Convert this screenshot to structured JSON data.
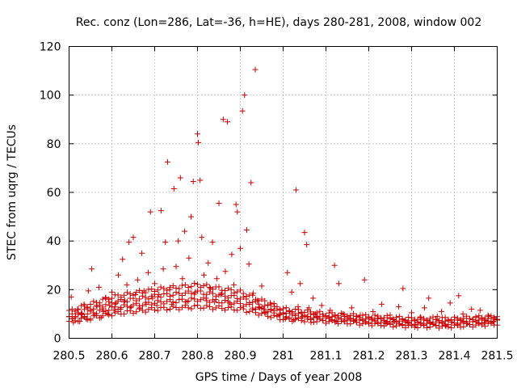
{
  "chart_data": {
    "type": "scatter",
    "title": "Rec. conz (Lon=286, Lat=-36, h=HE), days 280-281, 2008, window 002",
    "xlabel": "GPS time / Days of year 2008",
    "ylabel": "STEC from uqrg / TECUs",
    "xlim": [
      280.5,
      281.5
    ],
    "ylim": [
      0,
      120
    ],
    "xticks": [
      "280.5",
      "280.6",
      "280.7",
      "280.8",
      "280.9",
      "281",
      "281.1",
      "281.2",
      "281.3",
      "281.4",
      "281.5"
    ],
    "yticks": [
      "0",
      "20",
      "40",
      "60",
      "80",
      "100",
      "120"
    ],
    "grid": true,
    "marker": "plus",
    "color": "#cc0000",
    "series": [
      {
        "name": "STEC",
        "points": [
          [
            280.505,
            17.0
          ],
          [
            280.51,
            6.5
          ],
          [
            280.515,
            9.0
          ],
          [
            280.52,
            12.0
          ],
          [
            280.525,
            7.0
          ],
          [
            280.53,
            10.0
          ],
          [
            280.535,
            14.0
          ],
          [
            280.54,
            8.0
          ],
          [
            280.545,
            19.5
          ],
          [
            280.55,
            7.5
          ],
          [
            280.553,
            28.5
          ],
          [
            280.56,
            9.5
          ],
          [
            280.565,
            13.0
          ],
          [
            280.57,
            21.0
          ],
          [
            280.575,
            8.5
          ],
          [
            280.58,
            11.0
          ],
          [
            280.585,
            16.5
          ],
          [
            280.59,
            10.0
          ],
          [
            280.595,
            13.5
          ],
          [
            280.6,
            19.0
          ],
          [
            280.605,
            11.5
          ],
          [
            280.61,
            14.5
          ],
          [
            280.615,
            26.0
          ],
          [
            280.62,
            12.0
          ],
          [
            280.625,
            32.5
          ],
          [
            280.63,
            15.5
          ],
          [
            280.635,
            22.0
          ],
          [
            280.64,
            39.5
          ],
          [
            280.645,
            13.0
          ],
          [
            280.65,
            41.5
          ],
          [
            280.655,
            18.0
          ],
          [
            280.66,
            24.0
          ],
          [
            280.665,
            12.5
          ],
          [
            280.67,
            35.0
          ],
          [
            280.675,
            19.5
          ],
          [
            280.68,
            14.0
          ],
          [
            280.685,
            27.0
          ],
          [
            280.69,
            52.0
          ],
          [
            280.695,
            16.5
          ],
          [
            280.7,
            22.5
          ],
          [
            280.705,
            13.5
          ],
          [
            280.71,
            18.0
          ],
          [
            280.715,
            52.5
          ],
          [
            280.72,
            28.5
          ],
          [
            280.725,
            39.5
          ],
          [
            280.73,
            72.5
          ],
          [
            280.735,
            20.0
          ],
          [
            280.74,
            14.0
          ],
          [
            280.745,
            61.5
          ],
          [
            280.75,
            29.5
          ],
          [
            280.755,
            40.0
          ],
          [
            280.76,
            66.0
          ],
          [
            280.765,
            24.5
          ],
          [
            280.77,
            44.0
          ],
          [
            280.775,
            15.0
          ],
          [
            280.78,
            33.0
          ],
          [
            280.785,
            50.0
          ],
          [
            280.79,
            64.5
          ],
          [
            280.795,
            19.0
          ],
          [
            280.8,
            84.0
          ],
          [
            280.802,
            80.5
          ],
          [
            280.806,
            65.0
          ],
          [
            280.81,
            41.5
          ],
          [
            280.815,
            26.0
          ],
          [
            280.82,
            16.5
          ],
          [
            280.825,
            31.0
          ],
          [
            280.83,
            20.5
          ],
          [
            280.835,
            39.5
          ],
          [
            280.84,
            15.0
          ],
          [
            280.845,
            24.5
          ],
          [
            280.85,
            55.5
          ],
          [
            280.855,
            18.0
          ],
          [
            280.86,
            90.0
          ],
          [
            280.865,
            27.5
          ],
          [
            280.87,
            89.0
          ],
          [
            280.875,
            14.5
          ],
          [
            280.88,
            34.5
          ],
          [
            280.885,
            22.0
          ],
          [
            280.89,
            55.0
          ],
          [
            280.893,
            52.0
          ],
          [
            280.9,
            37.0
          ],
          [
            280.905,
            93.5
          ],
          [
            280.91,
            100.0
          ],
          [
            280.915,
            44.5
          ],
          [
            280.92,
            30.5
          ],
          [
            280.925,
            64.0
          ],
          [
            280.93,
            18.5
          ],
          [
            280.935,
            110.5
          ],
          [
            280.94,
            15.5
          ],
          [
            280.945,
            12.5
          ],
          [
            280.95,
            21.5
          ],
          [
            280.955,
            12.0
          ],
          [
            280.96,
            10.5
          ],
          [
            280.97,
            14.5
          ],
          [
            280.98,
            13.0
          ],
          [
            280.99,
            9.5
          ],
          [
            281.0,
            10.5
          ],
          [
            281.005,
            8.0
          ],
          [
            281.01,
            27.0
          ],
          [
            281.015,
            11.0
          ],
          [
            281.02,
            19.0
          ],
          [
            281.025,
            7.5
          ],
          [
            281.03,
            61.0
          ],
          [
            281.035,
            13.0
          ],
          [
            281.04,
            22.5
          ],
          [
            281.045,
            9.0
          ],
          [
            281.05,
            43.5
          ],
          [
            281.055,
            38.5
          ],
          [
            281.06,
            12.5
          ],
          [
            281.065,
            6.5
          ],
          [
            281.07,
            16.5
          ],
          [
            281.075,
            10.0
          ],
          [
            281.08,
            8.5
          ],
          [
            281.09,
            13.5
          ],
          [
            281.1,
            9.0
          ],
          [
            281.11,
            11.5
          ],
          [
            281.12,
            30.0
          ],
          [
            281.125,
            7.0
          ],
          [
            281.13,
            22.5
          ],
          [
            281.14,
            10.0
          ],
          [
            281.15,
            8.0
          ],
          [
            281.16,
            12.5
          ],
          [
            281.17,
            7.5
          ],
          [
            281.18,
            9.5
          ],
          [
            281.19,
            24.0
          ],
          [
            281.2,
            6.5
          ],
          [
            281.21,
            11.0
          ],
          [
            281.22,
            8.0
          ],
          [
            281.23,
            14.0
          ],
          [
            281.24,
            6.0
          ],
          [
            281.25,
            9.5
          ],
          [
            281.26,
            7.0
          ],
          [
            281.27,
            13.0
          ],
          [
            281.28,
            20.5
          ],
          [
            281.29,
            6.5
          ],
          [
            281.3,
            10.5
          ],
          [
            281.31,
            5.5
          ],
          [
            281.32,
            8.5
          ],
          [
            281.33,
            12.5
          ],
          [
            281.34,
            16.5
          ],
          [
            281.35,
            6.0
          ],
          [
            281.36,
            9.0
          ],
          [
            281.37,
            11.0
          ],
          [
            281.38,
            5.0
          ],
          [
            281.39,
            14.5
          ],
          [
            281.4,
            7.5
          ],
          [
            281.41,
            17.5
          ],
          [
            281.42,
            10.0
          ],
          [
            281.43,
            6.0
          ],
          [
            281.44,
            12.0
          ],
          [
            281.45,
            8.5
          ],
          [
            281.46,
            11.5
          ],
          [
            281.47,
            6.5
          ],
          [
            281.48,
            9.0
          ],
          [
            281.49,
            7.0
          ]
        ]
      }
    ],
    "baseline_band": {
      "note": "dense low-value bands plotted across the full time range",
      "lower": [
        [
          280.5,
          7
        ],
        [
          280.6,
          10
        ],
        [
          280.7,
          12
        ],
        [
          280.8,
          13
        ],
        [
          280.9,
          12
        ],
        [
          281.0,
          8
        ],
        [
          281.1,
          7
        ],
        [
          281.2,
          6
        ],
        [
          281.3,
          5
        ],
        [
          281.4,
          5
        ],
        [
          281.5,
          6
        ]
      ],
      "upper": [
        [
          280.5,
          11
        ],
        [
          280.6,
          17
        ],
        [
          280.7,
          20
        ],
        [
          280.8,
          22
        ],
        [
          280.9,
          19
        ],
        [
          281.0,
          12
        ],
        [
          281.1,
          10
        ],
        [
          281.2,
          9
        ],
        [
          281.3,
          8
        ],
        [
          281.4,
          8
        ],
        [
          281.5,
          9
        ]
      ]
    }
  }
}
